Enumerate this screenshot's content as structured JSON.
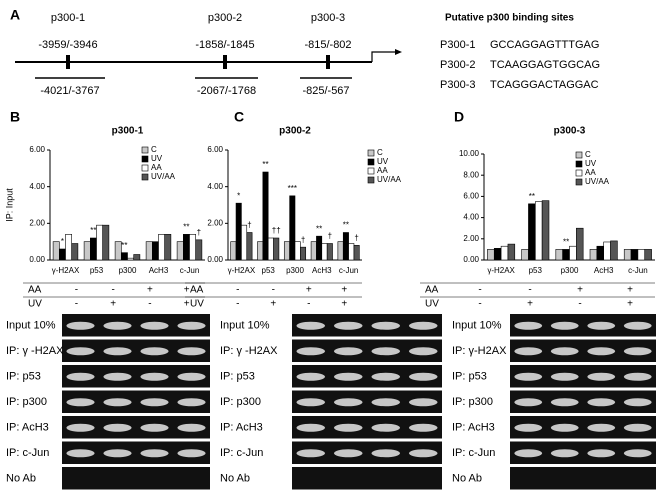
{
  "panel_a": {
    "letter": "A",
    "sites": [
      {
        "name": "p300-1",
        "site": "-3959/-3946",
        "amplicon": "-4021/-3767"
      },
      {
        "name": "p300-2",
        "site": "-1858/-1845",
        "amplicon": "-2067/-1768"
      },
      {
        "name": "p300-3",
        "site": "-815/-802",
        "amplicon": "-825/-567"
      }
    ],
    "table_title": "Putative p300 binding sites",
    "table": [
      {
        "name": "P300-1",
        "sequence": "GCCAGGAGTTTGAG"
      },
      {
        "name": "P300-2",
        "sequence": "TCAAGGAGTGGCAG"
      },
      {
        "name": "P300-3",
        "sequence": "TCAGGGACTAGGAC"
      }
    ]
  },
  "chart_data": [
    {
      "type": "bar",
      "panel": "B",
      "title": "p300-1",
      "y_label": "IP: Input",
      "categories": [
        "γ-H2AX",
        "p53",
        "p300",
        "AcH3",
        "c-Jun"
      ],
      "ylim": [
        0,
        6
      ],
      "yticks": [
        {
          "value": 0,
          "label": "0.00"
        },
        {
          "value": 2,
          "label": "2.00"
        },
        {
          "value": 4,
          "label": "4.00"
        },
        {
          "value": 6,
          "label": "6.00"
        }
      ],
      "series": [
        {
          "name": "C",
          "color": "#c8c8c8",
          "values": [
            1.0,
            1.0,
            1.0,
            1.0,
            1.0
          ]
        },
        {
          "name": "UV",
          "color": "#000000",
          "values": [
            0.6,
            1.2,
            0.4,
            1.0,
            1.4
          ]
        },
        {
          "name": "AA",
          "color": "#ffffff",
          "values": [
            1.4,
            1.9,
            0.1,
            1.4,
            1.4
          ]
        },
        {
          "name": "UV/AA",
          "color": "#555555",
          "values": [
            0.9,
            1.9,
            0.3,
            1.4,
            1.1
          ]
        }
      ],
      "annotations": [
        {
          "series": 1,
          "category": 0,
          "text": "*"
        },
        {
          "series": 1,
          "category": 1,
          "text": "**"
        },
        {
          "series": 1,
          "category": 2,
          "text": "**"
        },
        {
          "series": 1,
          "category": 4,
          "text": "**"
        },
        {
          "series": 3,
          "category": 4,
          "text": "†"
        }
      ],
      "conditions": [
        {
          "name": "AA",
          "values": [
            "-",
            "-",
            "+",
            "+"
          ]
        },
        {
          "name": "UV",
          "values": [
            "-",
            "+",
            "-",
            "+"
          ]
        }
      ]
    },
    {
      "type": "bar",
      "panel": "C",
      "title": "p300-2",
      "categories": [
        "γ-H2AX",
        "p53",
        "p300",
        "AcH3",
        "c-Jun"
      ],
      "ylim": [
        0,
        6
      ],
      "yticks": [
        {
          "value": 0,
          "label": "0.00"
        },
        {
          "value": 2,
          "label": "2.00"
        },
        {
          "value": 4,
          "label": "4.00"
        },
        {
          "value": 6,
          "label": "6.00"
        }
      ],
      "series": [
        {
          "name": "C",
          "color": "#c8c8c8",
          "values": [
            1.0,
            1.0,
            1.0,
            1.0,
            1.0
          ]
        },
        {
          "name": "UV",
          "color": "#000000",
          "values": [
            3.1,
            4.8,
            3.5,
            1.3,
            1.5
          ]
        },
        {
          "name": "AA",
          "color": "#ffffff",
          "values": [
            1.9,
            1.2,
            1.0,
            0.9,
            0.9
          ]
        },
        {
          "name": "UV/AA",
          "color": "#555555",
          "values": [
            1.5,
            1.2,
            0.7,
            0.9,
            0.8
          ]
        }
      ],
      "annotations": [
        {
          "series": 1,
          "category": 0,
          "text": "*"
        },
        {
          "series": 3,
          "category": 0,
          "text": "†"
        },
        {
          "series": 1,
          "category": 1,
          "text": "**"
        },
        {
          "series": 3,
          "category": 1,
          "text": "††"
        },
        {
          "series": 1,
          "category": 2,
          "text": "***"
        },
        {
          "series": 3,
          "category": 2,
          "text": "†"
        },
        {
          "series": 1,
          "category": 3,
          "text": "**"
        },
        {
          "series": 3,
          "category": 3,
          "text": "†"
        },
        {
          "series": 1,
          "category": 4,
          "text": "**"
        },
        {
          "series": 3,
          "category": 4,
          "text": "†"
        }
      ],
      "conditions": [
        {
          "name": "AA",
          "values": [
            "-",
            "-",
            "+",
            "+"
          ]
        },
        {
          "name": "UV",
          "values": [
            "-",
            "+",
            "-",
            "+"
          ]
        }
      ]
    },
    {
      "type": "bar",
      "panel": "D",
      "title": "p300-3",
      "categories": [
        "γ-H2AX",
        "p53",
        "p300",
        "AcH3",
        "c-Jun"
      ],
      "ylim": [
        0,
        10
      ],
      "yticks": [
        {
          "value": 0,
          "label": "0.00"
        },
        {
          "value": 2,
          "label": "2.00"
        },
        {
          "value": 4,
          "label": "4.00"
        },
        {
          "value": 6,
          "label": "6.00"
        },
        {
          "value": 8,
          "label": "8.00"
        },
        {
          "value": 10,
          "label": "10.00"
        }
      ],
      "series": [
        {
          "name": "C",
          "color": "#c8c8c8",
          "values": [
            1.0,
            1.0,
            1.0,
            1.0,
            1.0
          ]
        },
        {
          "name": "UV",
          "color": "#000000",
          "values": [
            1.1,
            5.3,
            1.0,
            1.3,
            1.0
          ]
        },
        {
          "name": "AA",
          "color": "#ffffff",
          "values": [
            1.3,
            5.5,
            1.3,
            1.7,
            1.0
          ]
        },
        {
          "name": "UV/AA",
          "color": "#555555",
          "values": [
            1.5,
            5.6,
            3.0,
            1.8,
            1.0
          ]
        }
      ],
      "annotations": [
        {
          "series": 1,
          "category": 1,
          "text": "**"
        },
        {
          "series": 1,
          "category": 2,
          "text": "**"
        }
      ],
      "conditions": [
        {
          "name": "AA",
          "values": [
            "-",
            "-",
            "+",
            "+"
          ]
        },
        {
          "name": "UV",
          "values": [
            "-",
            "+",
            "-",
            "+"
          ]
        }
      ]
    }
  ],
  "gels": [
    {
      "labels": [
        "Input 10%",
        "IP: γ -H2AX",
        "IP: p53",
        "IP: p300",
        "IP: AcH3",
        "IP: c-Jun",
        "No Ab"
      ]
    },
    {
      "labels": [
        "Input 10%",
        "IP: γ -H2AX",
        "IP: p53",
        "IP: p300",
        "IP: AcH3",
        "IP: c-Jun",
        "No Ab"
      ]
    },
    {
      "labels": [
        "Input 10%",
        "IP: γ-H2AX",
        "IP: p53",
        "IP: p300",
        "IP: AcH3",
        "IP: c-Jun",
        "No Ab"
      ]
    }
  ]
}
